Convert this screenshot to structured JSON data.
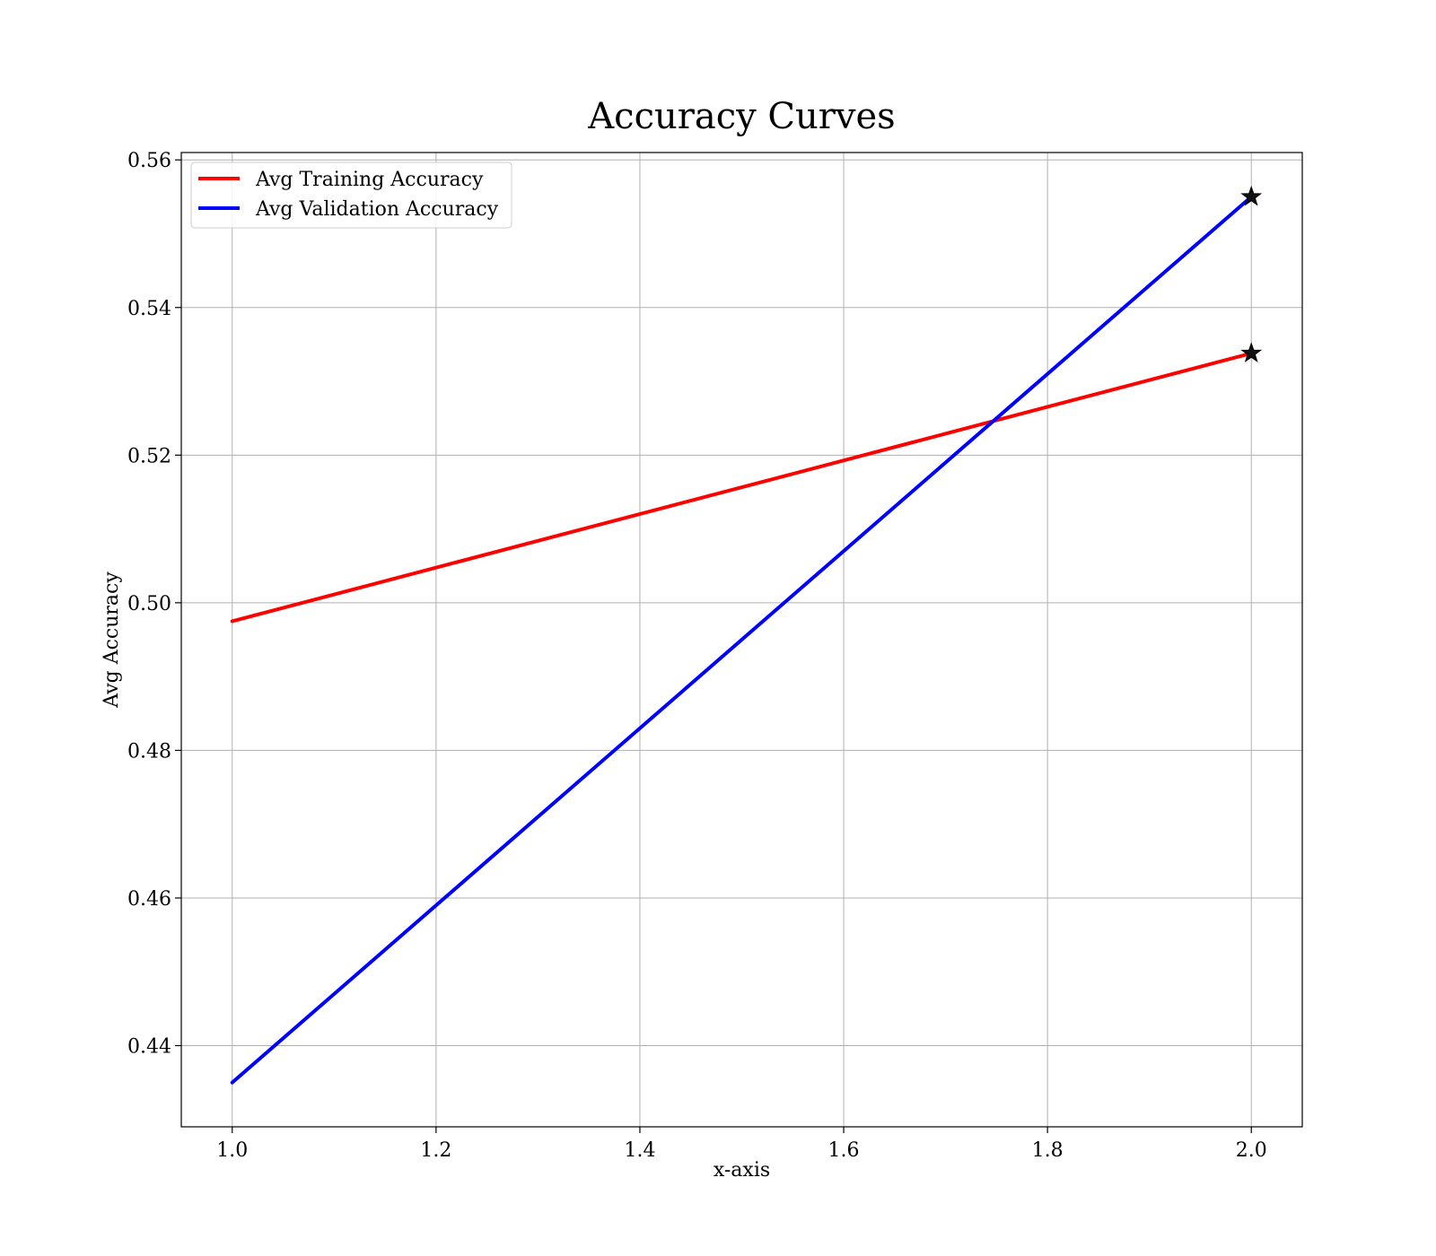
{
  "chart_data": {
    "type": "line",
    "title": "Accuracy Curves",
    "xlabel": "x-axis",
    "ylabel": "Avg Accuracy",
    "xlim": [
      0.95,
      2.05
    ],
    "ylim": [
      0.429,
      0.561
    ],
    "xticks": [
      1.0,
      1.2,
      1.4,
      1.6,
      1.8,
      2.0
    ],
    "xtick_labels": [
      "1.0",
      "1.2",
      "1.4",
      "1.6",
      "1.8",
      "2.0"
    ],
    "yticks": [
      0.44,
      0.46,
      0.48,
      0.5,
      0.52,
      0.54,
      0.56
    ],
    "ytick_labels": [
      "0.44",
      "0.46",
      "0.48",
      "0.50",
      "0.52",
      "0.54",
      "0.56"
    ],
    "grid": true,
    "legend_position": "top-left",
    "series": [
      {
        "name": "Avg Training Accuracy",
        "color": "#ff0000",
        "x": [
          1.0,
          2.0
        ],
        "y": [
          0.4975,
          0.5338
        ],
        "marker_last": "star"
      },
      {
        "name": "Avg Validation Accuracy",
        "color": "#0000ff",
        "x": [
          1.0,
          2.0
        ],
        "y": [
          0.435,
          0.555
        ],
        "marker_last": "star"
      }
    ]
  }
}
